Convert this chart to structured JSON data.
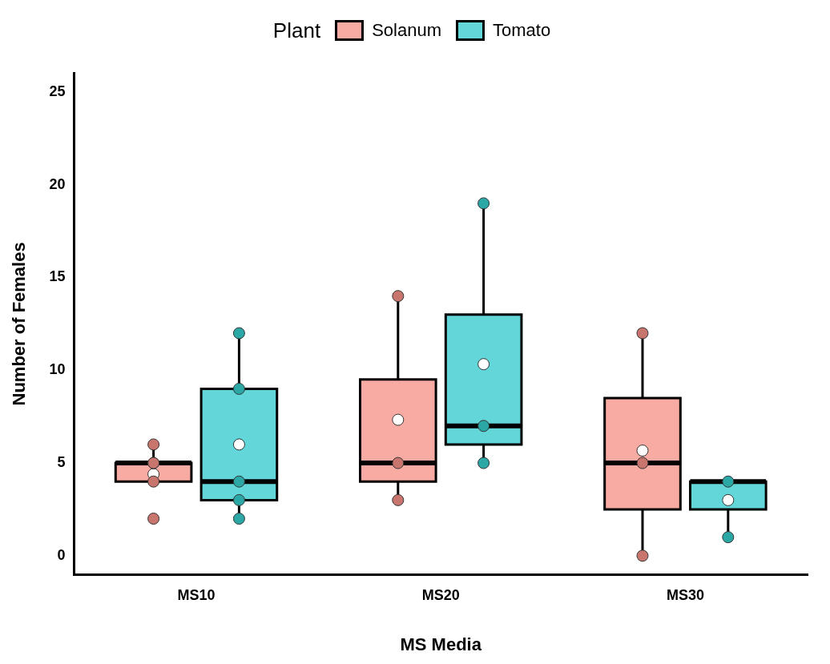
{
  "chart_data": {
    "type": "box",
    "xlabel": "MS Media",
    "ylabel": "Number of Females",
    "legend_title": "Plant",
    "legend": "top",
    "categories": [
      "MS10",
      "MS20",
      "MS30"
    ],
    "ylim": [
      -1,
      26
    ],
    "yticks": [
      0,
      5,
      10,
      15,
      20,
      25
    ],
    "grid": false,
    "marker": "circle",
    "series": [
      {
        "name": "Solanum",
        "color": "#f8aba3",
        "boxes": [
          {
            "low": 4,
            "q1": 4,
            "median": 5,
            "q3": 5,
            "high": 6,
            "mean": 4.4
          },
          {
            "low": 3,
            "q1": 4,
            "median": 5,
            "q3": 9.5,
            "high": 14,
            "mean": 7.33
          },
          {
            "low": 0,
            "q1": 2.5,
            "median": 5,
            "q3": 8.5,
            "high": 12,
            "mean": 5.67
          }
        ]
      },
      {
        "name": "Tomato",
        "color": "#62d6d8",
        "boxes": [
          {
            "low": 2,
            "q1": 3,
            "median": 4,
            "q3": 9,
            "high": 12,
            "mean": 6
          },
          {
            "low": 5,
            "q1": 6,
            "median": 7,
            "q3": 13,
            "high": 19,
            "mean": 10.33
          },
          {
            "low": 1,
            "q1": 2.5,
            "median": 4,
            "q3": 4,
            "high": 4,
            "mean": 3
          }
        ]
      },
      {
        "type": "scatter",
        "color": "#c8756d",
        "x": [
          "MS10",
          "MS10",
          "MS10",
          "MS10",
          "MS10",
          "MS20",
          "MS20",
          "MS20",
          "MS30",
          "MS30",
          "MS30"
        ],
        "values": [
          6,
          2,
          4,
          5,
          5,
          14,
          5,
          3,
          12,
          5,
          0
        ]
      },
      {
        "type": "scatter",
        "color": "#2ba7a6",
        "x": [
          "MS10",
          "MS10",
          "MS10",
          "MS10",
          "MS10",
          "MS20",
          "MS20",
          "MS20",
          "MS30",
          "MS30",
          "MS30"
        ],
        "values": [
          2,
          3,
          4,
          9,
          12,
          19,
          7,
          5,
          4,
          1,
          null
        ]
      }
    ]
  }
}
